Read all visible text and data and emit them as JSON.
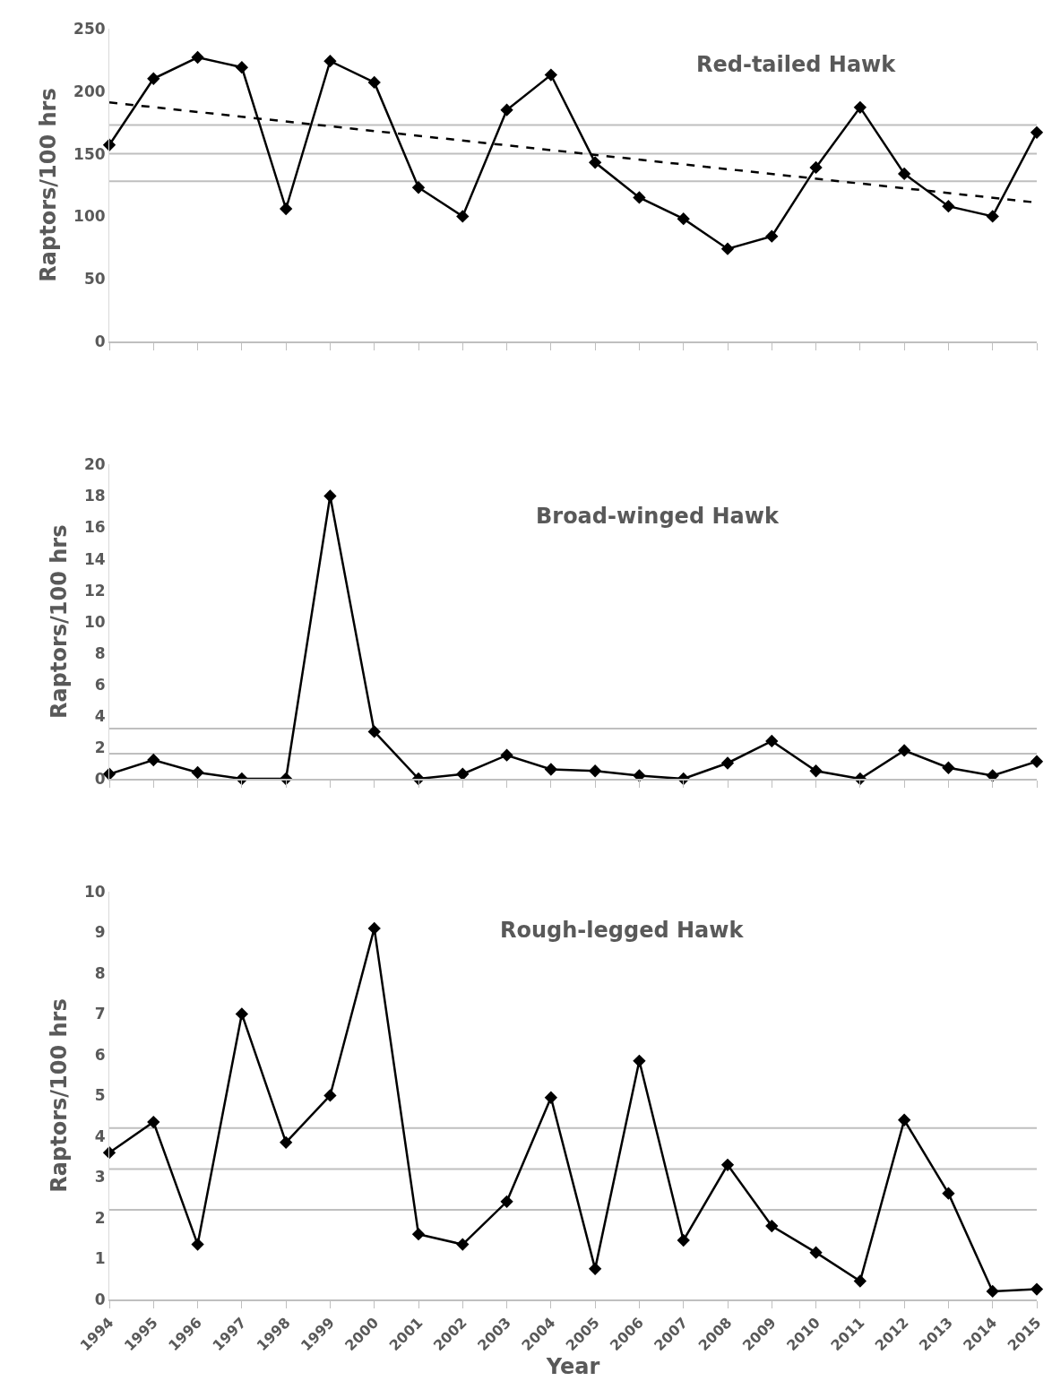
{
  "chart_data": [
    {
      "type": "line",
      "title": "Red-tailed Hawk",
      "ylabel": "Raptors/100 hrs",
      "x": [
        1994,
        1995,
        1996,
        1997,
        1998,
        1999,
        2000,
        2001,
        2002,
        2003,
        2004,
        2005,
        2006,
        2007,
        2008,
        2009,
        2010,
        2011,
        2012,
        2013,
        2014,
        2015
      ],
      "xlim": [
        1994,
        2015
      ],
      "xticks": [
        1994,
        1995,
        1996,
        1997,
        1998,
        1999,
        2000,
        2001,
        2002,
        2003,
        2004,
        2005,
        2006,
        2007,
        2008,
        2009,
        2010,
        2011,
        2012,
        2013,
        2014,
        2015
      ],
      "tick_labels": "y",
      "ylim": [
        0,
        250
      ],
      "yticks": [
        0,
        50,
        100,
        150,
        200,
        250
      ],
      "grid": false,
      "marker": "diamond",
      "line_style": "solid",
      "series": [
        {
          "color": "#000000",
          "values": [
            157,
            210,
            227,
            219,
            106,
            224,
            207,
            123,
            100,
            185,
            213,
            143,
            115,
            98,
            74,
            84,
            139,
            187,
            134,
            108,
            100,
            167
          ]
        },
        {
          "type": "line",
          "color": "#000000",
          "x": [
            1994,
            2015
          ],
          "values": [
            191,
            111
          ],
          "marker": "none",
          "line_style": "dashed"
        }
      ],
      "ref_lines": [
        {
          "axis": "y",
          "value": 173,
          "color": "#bfbfbf"
        },
        {
          "axis": "y",
          "value": 150,
          "color": "#bfbfbf"
        },
        {
          "axis": "y",
          "value": 128,
          "color": "#bfbfbf"
        }
      ]
    },
    {
      "type": "line",
      "title": "Broad-winged Hawk",
      "ylabel": "Raptors/100 hrs",
      "x": [
        1994,
        1995,
        1996,
        1997,
        1998,
        1999,
        2000,
        2001,
        2002,
        2003,
        2004,
        2005,
        2006,
        2007,
        2008,
        2009,
        2010,
        2011,
        2012,
        2013,
        2014,
        2015
      ],
      "xlim": [
        1994,
        2015
      ],
      "xticks": [
        1994,
        1995,
        1996,
        1997,
        1998,
        1999,
        2000,
        2001,
        2002,
        2003,
        2004,
        2005,
        2006,
        2007,
        2008,
        2009,
        2010,
        2011,
        2012,
        2013,
        2014,
        2015
      ],
      "tick_labels": "y",
      "ylim": [
        0,
        20
      ],
      "yticks": [
        0,
        2,
        4,
        6,
        8,
        10,
        12,
        14,
        16,
        18,
        20
      ],
      "grid": false,
      "marker": "diamond",
      "line_style": "solid",
      "series": [
        {
          "color": "#000000",
          "values": [
            0.3,
            1.2,
            0.4,
            0,
            0,
            18,
            3,
            0,
            0.3,
            1.5,
            0.6,
            0.5,
            0.2,
            0,
            1,
            2.4,
            0.5,
            0,
            1.8,
            0.7,
            0.2,
            1.1
          ]
        }
      ],
      "ref_lines": [
        {
          "axis": "y",
          "value": 3.2,
          "color": "#bfbfbf"
        },
        {
          "axis": "y",
          "value": 1.6,
          "color": "#bfbfbf"
        }
      ]
    },
    {
      "type": "line",
      "title": "Rough-legged Hawk",
      "xlabel": "Year",
      "ylabel": "Raptors/100 hrs",
      "x": [
        1994,
        1995,
        1996,
        1997,
        1998,
        1999,
        2000,
        2001,
        2002,
        2003,
        2004,
        2005,
        2006,
        2007,
        2008,
        2009,
        2010,
        2011,
        2012,
        2013,
        2014,
        2015
      ],
      "xlim": [
        1994,
        2015
      ],
      "xticks": [
        1994,
        1995,
        1996,
        1997,
        1998,
        1999,
        2000,
        2001,
        2002,
        2003,
        2004,
        2005,
        2006,
        2007,
        2008,
        2009,
        2010,
        2011,
        2012,
        2013,
        2014,
        2015
      ],
      "ylim": [
        0,
        10
      ],
      "yticks": [
        0,
        1,
        2,
        3,
        4,
        5,
        6,
        7,
        8,
        9,
        10
      ],
      "grid": false,
      "marker": "diamond",
      "line_style": "solid",
      "series": [
        {
          "color": "#000000",
          "values": [
            3.6,
            4.35,
            1.35,
            7.0,
            3.85,
            5.0,
            9.1,
            1.6,
            1.35,
            2.4,
            4.95,
            0.75,
            5.85,
            1.45,
            3.3,
            1.8,
            1.15,
            0.45,
            4.4,
            2.6,
            0.2,
            0.25
          ]
        }
      ],
      "ref_lines": [
        {
          "axis": "y",
          "value": 4.2,
          "color": "#bfbfbf"
        },
        {
          "axis": "y",
          "value": 3.2,
          "color": "#bfbfbf"
        },
        {
          "axis": "y",
          "value": 2.2,
          "color": "#bfbfbf"
        }
      ]
    }
  ]
}
